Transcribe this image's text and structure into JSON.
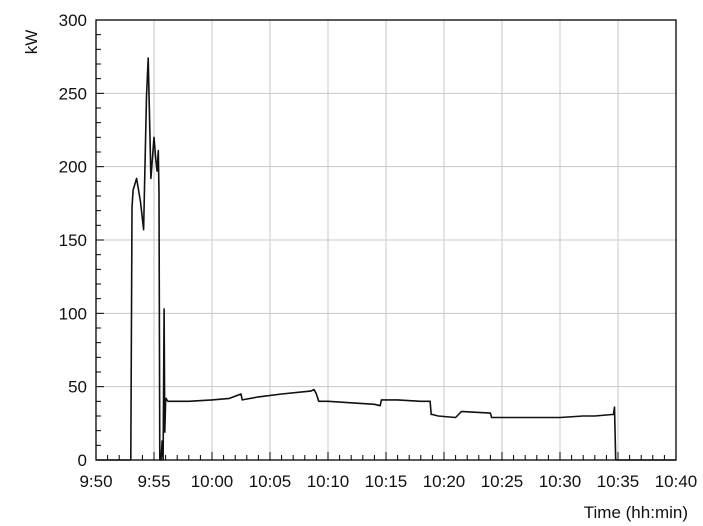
{
  "chart_data": {
    "type": "line",
    "title": "",
    "ylabel": "kW",
    "xlabel": "Time (hh:min)",
    "ylim": [
      0,
      300
    ],
    "xlim": [
      "9:50",
      "10:40"
    ],
    "grid": true,
    "y_ticks": [
      "0",
      "50",
      "100",
      "150",
      "200",
      "250",
      "300"
    ],
    "x_ticks": [
      "9:50",
      "9:55",
      "10:00",
      "10:05",
      "10:10",
      "10:15",
      "10:20",
      "10:25",
      "10:30",
      "10:35",
      "10:40"
    ],
    "series": [
      {
        "color": "#111111",
        "x": [
          "9:50:00",
          "9:53:00",
          "9:53:06",
          "9:53:12",
          "9:53:30",
          "9:53:50",
          "9:54:06",
          "9:54:21",
          "9:54:30",
          "9:54:44",
          "9:55:00",
          "9:55:10",
          "9:55:16",
          "9:55:22",
          "9:55:26",
          "9:55:30",
          "9:55:36",
          "9:55:42",
          "9:55:47",
          "9:55:52",
          "9:55:56",
          "9:56:00",
          "9:56:03",
          "9:56:06",
          "9:56:12",
          "9:56:18",
          "9:56:24",
          "9:56:36",
          "9:56:48",
          "9:57:00",
          "9:58:00",
          "10:00:00",
          "10:01:30",
          "10:02:30",
          "10:02:36",
          "10:04:00",
          "10:06:00",
          "10:08:30",
          "10:08:48",
          "10:09:00",
          "10:09:12",
          "10:10:00",
          "10:12:00",
          "10:14:00",
          "10:14:30",
          "10:14:36",
          "10:16:00",
          "10:18:00",
          "10:18:48",
          "10:18:54",
          "10:19:00",
          "10:19:30",
          "10:21:00",
          "10:21:30",
          "10:21:36",
          "10:24:00",
          "10:24:06",
          "10:27:00",
          "10:30:00",
          "10:32:00",
          "10:33:00",
          "10:34:30",
          "10:34:36",
          "10:34:42",
          "10:34:48",
          "10:40:00"
        ],
        "y": [
          0,
          0,
          172,
          184,
          192,
          176,
          157,
          248,
          274,
          192,
          220,
          204,
          197,
          211,
          182,
          0,
          0,
          13,
          0,
          103,
          19,
          40,
          42,
          41,
          40,
          40,
          40,
          40,
          40,
          40,
          40,
          41,
          42,
          45,
          41,
          43,
          45,
          47,
          48,
          45,
          40,
          40,
          39,
          38,
          37,
          41,
          41,
          40,
          40,
          31,
          31,
          30,
          29,
          33,
          33,
          32,
          29,
          29,
          29,
          30,
          30,
          31,
          31,
          36,
          0,
          0
        ]
      }
    ]
  }
}
